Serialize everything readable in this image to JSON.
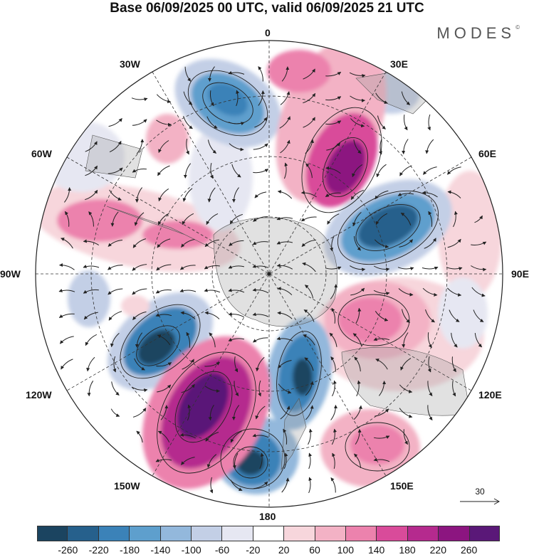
{
  "header": {
    "title": "Base 06/09/2025 00 UTC, valid 06/09/2025 21 UTC",
    "brand": "MODES",
    "brand_mark": "©"
  },
  "map": {
    "projection": "south-polar-stereographic",
    "longitude_labels": [
      "0",
      "30E",
      "60E",
      "90E",
      "120E",
      "150E",
      "180",
      "150W",
      "120W",
      "90W",
      "60W",
      "30W"
    ]
  },
  "vector_reference": {
    "label": "30"
  },
  "legend": {
    "ticks": [
      "-260",
      "-220",
      "-180",
      "-140",
      "-100",
      "-60",
      "-20",
      "20",
      "60",
      "100",
      "140",
      "180",
      "220",
      "260"
    ],
    "colors": [
      "#1b4460",
      "#26608c",
      "#3b82b8",
      "#5e9fcd",
      "#93b8dc",
      "#c3cfe6",
      "#e6e7f2",
      "#ffffff",
      "#f7d6dc",
      "#f3b2c5",
      "#ec82ad",
      "#d94b9a",
      "#b52a8e",
      "#8c1580",
      "#5a1878"
    ]
  }
}
